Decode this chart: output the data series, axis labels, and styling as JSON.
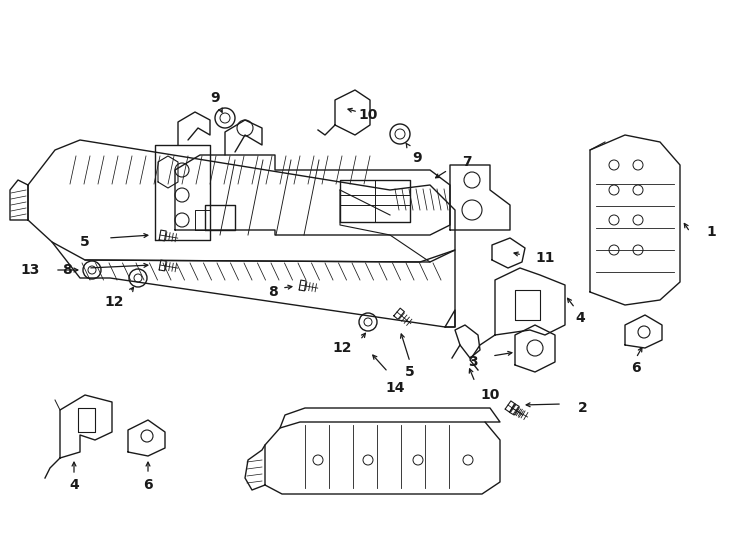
{
  "bg_color": "#ffffff",
  "line_color": "#1a1a1a",
  "lw": 1.0,
  "thin": 0.6,
  "label_fs": 10,
  "label_fw": "bold"
}
